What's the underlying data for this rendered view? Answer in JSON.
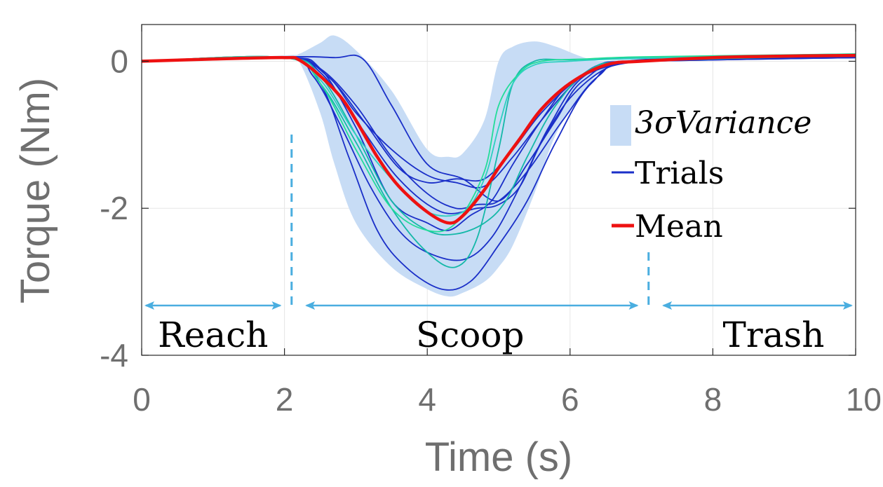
{
  "chart_data": {
    "type": "line",
    "title": "",
    "xlabel": "Time (s)",
    "ylabel": "Torque (Nm)",
    "xlim": [
      0,
      10
    ],
    "ylim": [
      -4,
      0.5
    ],
    "xticks": [
      0,
      2,
      4,
      6,
      8,
      10
    ],
    "yticks": [
      0,
      -2,
      -4
    ],
    "grid": true,
    "legend": {
      "placement": "right-middle",
      "entries": [
        {
          "label": "3σVariance",
          "kind": "patch",
          "color": "#c7dcf5"
        },
        {
          "label": "Trials",
          "kind": "line",
          "color": "#1a2fc8"
        },
        {
          "label": "Mean",
          "kind": "line",
          "color": "#ee1111"
        }
      ]
    },
    "variance_band": {
      "color": "#c7dcf5",
      "x": [
        0,
        2,
        2.2,
        2.5,
        2.7,
        3.0,
        3.5,
        4.0,
        4.3,
        4.5,
        4.8,
        5.0,
        5.2,
        5.5,
        5.8,
        6.2,
        6.5,
        7.0,
        10
      ],
      "upper": [
        0.0,
        0.08,
        0.1,
        0.25,
        0.35,
        0.15,
        -0.4,
        -1.2,
        -1.3,
        -1.25,
        -0.8,
        0.0,
        0.2,
        0.27,
        0.2,
        0.05,
        0.0,
        0.03,
        0.05
      ],
      "lower": [
        0.0,
        0.04,
        0.0,
        -0.7,
        -1.4,
        -2.2,
        -2.8,
        -3.1,
        -3.2,
        -3.15,
        -3.0,
        -2.8,
        -2.5,
        -1.8,
        -1.0,
        -0.4,
        -0.1,
        0.0,
        0.05
      ]
    },
    "mean": {
      "name": "Mean",
      "color": "#ee1111",
      "x": [
        0,
        1,
        2,
        2.2,
        2.5,
        2.8,
        3.0,
        3.3,
        3.6,
        4.0,
        4.3,
        4.5,
        4.8,
        5.0,
        5.3,
        5.6,
        6.0,
        6.5,
        7.0,
        8,
        9,
        10
      ],
      "y": [
        0.0,
        0.03,
        0.05,
        0.02,
        -0.2,
        -0.5,
        -0.8,
        -1.3,
        -1.7,
        -2.05,
        -2.2,
        -2.1,
        -1.75,
        -1.45,
        -1.05,
        -0.65,
        -0.3,
        -0.05,
        0.0,
        0.05,
        0.07,
        0.08
      ]
    },
    "trials": [
      {
        "color": "#1a2fc8",
        "x": [
          0,
          2,
          2.5,
          3.0,
          3.5,
          4.0,
          4.3,
          4.6,
          4.9,
          5.2,
          5.6,
          6.0,
          6.5,
          7,
          10
        ],
        "y": [
          0,
          0.05,
          -0.1,
          -0.9,
          -1.9,
          -2.2,
          -2.3,
          -2.1,
          -1.9,
          -1.4,
          -0.8,
          -0.3,
          -0.05,
          0.0,
          0.08
        ]
      },
      {
        "color": "#1a2fc8",
        "x": [
          0,
          2,
          2.5,
          2.9,
          3.3,
          3.7,
          4.2,
          4.6,
          5.0,
          5.4,
          5.8,
          6.3,
          7,
          10
        ],
        "y": [
          0,
          0.05,
          -0.3,
          -1.3,
          -2.3,
          -2.8,
          -3.1,
          -3.0,
          -2.5,
          -1.9,
          -1.1,
          -0.3,
          0.0,
          0.06
        ]
      },
      {
        "color": "#1a2fc8",
        "x": [
          0,
          2,
          2.7,
          3.1,
          3.5,
          4.0,
          4.5,
          5.0,
          5.4,
          5.8,
          6.2,
          7,
          10
        ],
        "y": [
          0,
          0.06,
          0.05,
          0.03,
          -0.6,
          -1.4,
          -1.6,
          -1.9,
          -1.4,
          -0.8,
          -0.25,
          0.02,
          0.07
        ]
      },
      {
        "color": "#1a2fc8",
        "x": [
          0,
          2,
          2.6,
          3.0,
          3.5,
          4.0,
          4.4,
          4.8,
          5.2,
          5.6,
          6.0,
          6.4,
          7,
          10
        ],
        "y": [
          0,
          0.05,
          -0.2,
          -0.7,
          -1.2,
          -1.55,
          -1.65,
          -1.7,
          -1.3,
          -0.8,
          -0.35,
          -0.05,
          0.0,
          0.05
        ]
      },
      {
        "color": "#1a2fc8",
        "x": [
          0,
          2,
          2.4,
          2.8,
          3.2,
          3.6,
          4.0,
          4.5,
          4.9,
          5.3,
          5.7,
          6.2,
          7,
          10
        ],
        "y": [
          0,
          0.05,
          -0.2,
          -0.9,
          -1.7,
          -2.3,
          -2.6,
          -2.7,
          -2.4,
          -1.7,
          -0.9,
          -0.2,
          0.0,
          0.05
        ]
      },
      {
        "color": "#1a2fc8",
        "x": [
          0,
          2,
          2.5,
          3.0,
          3.5,
          4.0,
          4.4,
          4.7,
          5.0,
          5.4,
          5.9,
          6.4,
          7,
          10
        ],
        "y": [
          0,
          0.05,
          -0.1,
          -0.6,
          -1.3,
          -1.8,
          -2.0,
          -1.95,
          -1.9,
          -1.5,
          -0.8,
          -0.2,
          0.0,
          0.06
        ]
      },
      {
        "color": "#1a2fc8",
        "x": [
          0,
          2,
          2.5,
          3.0,
          3.6,
          4.2,
          4.7,
          5.0,
          5.3,
          5.6,
          6.0,
          6.5,
          7,
          10
        ],
        "y": [
          0,
          0.05,
          -0.15,
          -0.8,
          -1.6,
          -2.05,
          -2.0,
          -1.95,
          -1.7,
          -1.1,
          -0.5,
          -0.1,
          0.0,
          0.06
        ]
      },
      {
        "color": "#1a2fc8",
        "x": [
          0,
          2,
          2.6,
          3.1,
          3.6,
          4.0,
          4.4,
          4.8,
          5.2,
          5.6,
          6.1,
          6.6,
          7,
          10
        ],
        "y": [
          0,
          0.05,
          -0.2,
          -0.8,
          -1.45,
          -1.65,
          -1.6,
          -1.6,
          -1.2,
          -0.7,
          -0.25,
          -0.05,
          0.0,
          0.05
        ]
      },
      {
        "color": "#14b8a8",
        "x": [
          0,
          2,
          2.5,
          3.0,
          3.5,
          4.0,
          4.4,
          4.7,
          5.0,
          5.2,
          5.5,
          6.0,
          7,
          10
        ],
        "y": [
          0,
          0.05,
          -0.3,
          -1.1,
          -2.0,
          -2.6,
          -2.8,
          -2.4,
          -1.2,
          -0.3,
          0.0,
          0.02,
          0.05,
          0.1
        ]
      },
      {
        "color": "#14b8a8",
        "x": [
          0,
          2,
          2.5,
          3.0,
          3.5,
          4.0,
          4.4,
          4.8,
          5.1,
          5.4,
          5.8,
          6.3,
          7,
          10
        ],
        "y": [
          0,
          0.05,
          -0.2,
          -1.0,
          -1.9,
          -2.3,
          -2.35,
          -2.2,
          -1.9,
          -1.3,
          -0.6,
          -0.1,
          0.0,
          0.08
        ]
      },
      {
        "color": "#22dd99",
        "x": [
          0,
          2,
          2.5,
          3.0,
          3.5,
          4.0,
          4.4,
          4.8,
          5.0,
          5.3,
          5.6,
          6.2,
          7,
          10
        ],
        "y": [
          0,
          0.05,
          -0.3,
          -1.2,
          -2.0,
          -2.3,
          -2.2,
          -1.5,
          -0.6,
          -0.15,
          0.0,
          0.03,
          0.06,
          0.1
        ]
      },
      {
        "color": "#2ed0c0",
        "x": [
          0,
          2,
          2.5,
          3.0,
          3.5,
          4.0,
          4.5,
          4.8,
          5.0,
          5.2,
          5.5,
          6.0,
          7,
          10
        ],
        "y": [
          0,
          0.05,
          -0.25,
          -1.0,
          -1.6,
          -2.05,
          -2.05,
          -1.6,
          -0.9,
          -0.3,
          -0.05,
          0.0,
          0.04,
          0.09
        ]
      }
    ],
    "phases": [
      {
        "label": "Reach",
        "x_start": 0,
        "x_end": 2.0,
        "label_x": 1.0
      },
      {
        "label": "Scoop",
        "x_start": 2.25,
        "x_end": 7.0,
        "label_x": 4.6
      },
      {
        "label": "Trash",
        "x_start": 7.25,
        "x_end": 10,
        "label_x": 8.85
      }
    ],
    "phase_boundaries": [
      2.1,
      7.1
    ],
    "phase_color": "#4aaee0"
  }
}
